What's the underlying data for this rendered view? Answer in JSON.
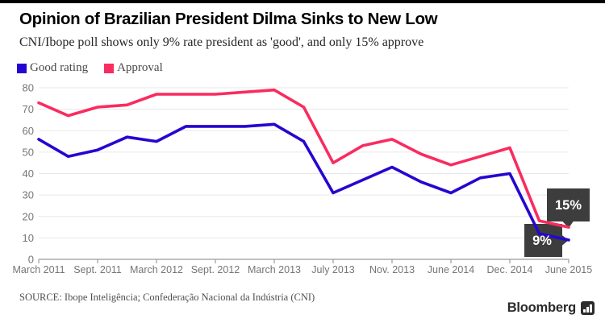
{
  "header": {
    "title": "Opinion of Brazilian President Dilma Sinks to New Low",
    "subtitle": "CNI/Ibope poll shows only 9% rate president as 'good', and only 15% approve"
  },
  "chart_data": {
    "type": "line",
    "ylim": [
      0,
      80
    ],
    "yticks": [
      0,
      10,
      20,
      30,
      40,
      50,
      60,
      70,
      80
    ],
    "x_tick_labels": [
      "March 2011",
      "Sept. 2011",
      "March 2012",
      "Sept. 2012",
      "March 2013",
      "July 2013",
      "Nov. 2013",
      "June 2014",
      "Dec. 2014",
      "June 2015"
    ],
    "x_tick_indices": [
      0,
      2,
      4,
      6,
      8,
      10,
      12,
      14,
      16,
      18
    ],
    "num_points": 19,
    "grid": "horizontal",
    "legend_position": "top-left",
    "series": [
      {
        "name": "Good rating",
        "color": "#2506d0",
        "values": [
          56,
          48,
          51,
          57,
          55,
          62,
          62,
          62,
          63,
          55,
          31,
          37,
          43,
          36,
          31,
          38,
          40,
          12,
          9
        ]
      },
      {
        "name": "Approval",
        "color": "#f92c5f",
        "values": [
          73,
          67,
          71,
          72,
          77,
          77,
          77,
          78,
          79,
          71,
          45,
          53,
          56,
          49,
          44,
          48,
          52,
          18,
          15
        ]
      }
    ],
    "annotations": [
      {
        "text": "9%",
        "series": "Good rating",
        "point_index": 18
      },
      {
        "text": "15%",
        "series": "Approval",
        "point_index": 18
      }
    ]
  },
  "colors": {
    "good_rating": "#2506d0",
    "approval": "#f92c5f",
    "tooltip_bg": "#3d3d3d",
    "tooltip_text": "#ffffff",
    "gridline": "#e8e8e8",
    "axis": "#9b9b9b",
    "tick_label": "#757575"
  },
  "footer": {
    "source": "SOURCE: Ibope Inteligência; Confederação Nacional da Indústria (CNI)",
    "brand": "Bloomberg"
  }
}
